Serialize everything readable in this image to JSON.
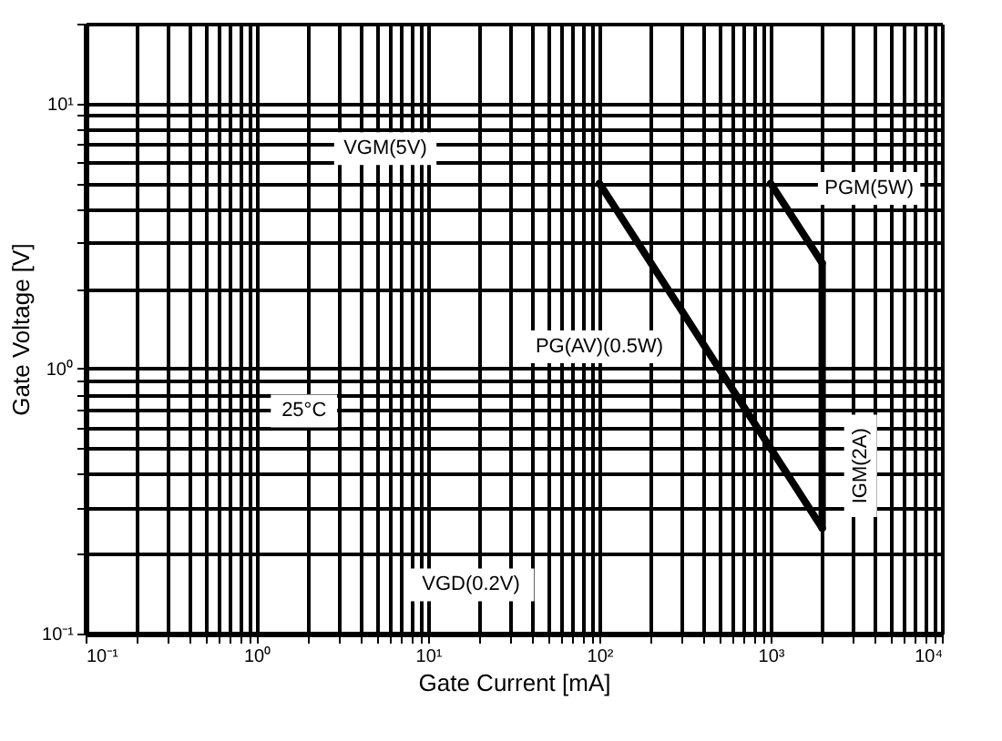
{
  "chart_data": {
    "type": "line",
    "xlabel": "Gate Current [mA]",
    "ylabel": "Gate Voltage [V]",
    "log": "xy",
    "grid": true,
    "marker": "none",
    "line_style": "solid",
    "xlim": [
      0.1,
      10000
    ],
    "ylim": [
      0.1,
      20
    ],
    "xticks": [
      {
        "value": 0.1,
        "label": "10⁻¹"
      },
      {
        "value": 0.2,
        "label": null
      },
      {
        "value": 0.3,
        "label": null
      },
      {
        "value": 0.4,
        "label": null
      },
      {
        "value": 0.5,
        "label": null
      },
      {
        "value": 0.6,
        "label": null
      },
      {
        "value": 0.7,
        "label": null
      },
      {
        "value": 0.8,
        "label": null
      },
      {
        "value": 0.9,
        "label": null
      },
      {
        "value": 1,
        "label": "10⁰"
      },
      {
        "value": 2,
        "label": null
      },
      {
        "value": 3,
        "label": null
      },
      {
        "value": 4,
        "label": null
      },
      {
        "value": 5,
        "label": null
      },
      {
        "value": 6,
        "label": null
      },
      {
        "value": 7,
        "label": null
      },
      {
        "value": 8,
        "label": null
      },
      {
        "value": 9,
        "label": null
      },
      {
        "value": 10,
        "label": "10¹"
      },
      {
        "value": 20,
        "label": null
      },
      {
        "value": 30,
        "label": null
      },
      {
        "value": 40,
        "label": null
      },
      {
        "value": 50,
        "label": null
      },
      {
        "value": 60,
        "label": null
      },
      {
        "value": 70,
        "label": null
      },
      {
        "value": 80,
        "label": null
      },
      {
        "value": 90,
        "label": null
      },
      {
        "value": 100,
        "label": "10²"
      },
      {
        "value": 200,
        "label": null
      },
      {
        "value": 300,
        "label": null
      },
      {
        "value": 400,
        "label": null
      },
      {
        "value": 500,
        "label": null
      },
      {
        "value": 600,
        "label": null
      },
      {
        "value": 700,
        "label": null
      },
      {
        "value": 800,
        "label": null
      },
      {
        "value": 900,
        "label": null
      },
      {
        "value": 1000,
        "label": "10³"
      },
      {
        "value": 2000,
        "label": null
      },
      {
        "value": 3000,
        "label": null
      },
      {
        "value": 4000,
        "label": null
      },
      {
        "value": 5000,
        "label": null
      },
      {
        "value": 6000,
        "label": null
      },
      {
        "value": 7000,
        "label": null
      },
      {
        "value": 8000,
        "label": null
      },
      {
        "value": 9000,
        "label": null
      },
      {
        "value": 10000,
        "label": "10⁴"
      }
    ],
    "yticks": [
      {
        "value": 0.1,
        "label": "10⁻¹"
      },
      {
        "value": 0.2,
        "label": null
      },
      {
        "value": 0.3,
        "label": null
      },
      {
        "value": 0.4,
        "label": null
      },
      {
        "value": 0.5,
        "label": null
      },
      {
        "value": 0.6,
        "label": null
      },
      {
        "value": 0.7,
        "label": null
      },
      {
        "value": 0.8,
        "label": null
      },
      {
        "value": 0.9,
        "label": null
      },
      {
        "value": 1,
        "label": "10⁰"
      },
      {
        "value": 2,
        "label": null
      },
      {
        "value": 3,
        "label": null
      },
      {
        "value": 4,
        "label": null
      },
      {
        "value": 5,
        "label": null
      },
      {
        "value": 6,
        "label": null
      },
      {
        "value": 7,
        "label": null
      },
      {
        "value": 8,
        "label": null
      },
      {
        "value": 9,
        "label": null
      },
      {
        "value": 10,
        "label": "10¹"
      },
      {
        "value": 20,
        "label": null
      }
    ],
    "series": [
      {
        "color": "#000000",
        "x": [
          100,
          2000
        ],
        "values": [
          5,
          0.25
        ]
      },
      {
        "color": "#000000",
        "x": [
          1000,
          2000
        ],
        "values": [
          5,
          2.5
        ]
      },
      {
        "color": "#000000",
        "x": [
          2000,
          2000
        ],
        "values": [
          2.5,
          0.25
        ]
      }
    ],
    "annotations": [
      "VGM(5V)",
      "PGM(5W)",
      "PG(AV)(0.5W)",
      "IGM(2A)",
      "VGD(0.2V)",
      "25°C"
    ]
  }
}
